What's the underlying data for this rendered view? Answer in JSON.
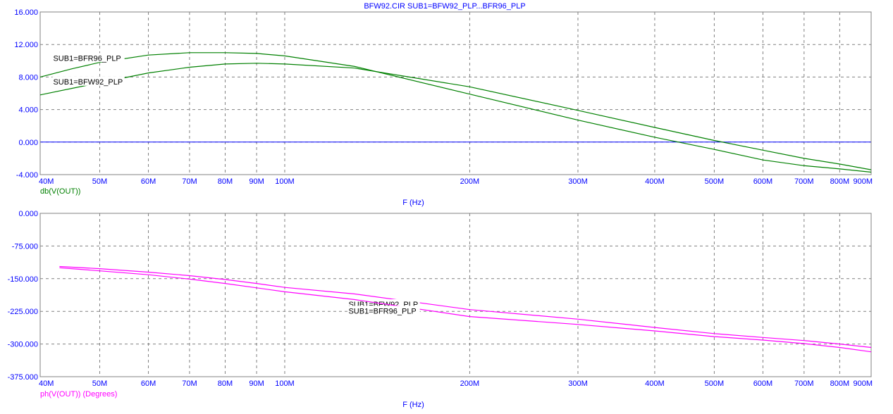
{
  "window_title": "BFW92.CIR SUB1=BFW92_PLP...BFR96_PLP",
  "colors": {
    "axis_text": "#0000ff",
    "grid": "#808080",
    "frame": "#808080",
    "magnitude": "#008000",
    "phase": "#ff00ff",
    "zero_line": "#0000ff"
  },
  "chart_data": [
    {
      "type": "line",
      "x_scale": "log",
      "xlabel": "F (Hz)",
      "ylabel": "db(V(OUT))",
      "xlim": [
        40000000,
        900000000
      ],
      "ylim": [
        -4,
        16
      ],
      "x_ticks": [
        {
          "v": 40000000,
          "label": "40M"
        },
        {
          "v": 50000000,
          "label": "50M"
        },
        {
          "v": 60000000,
          "label": "60M"
        },
        {
          "v": 70000000,
          "label": "70M"
        },
        {
          "v": 80000000,
          "label": "80M"
        },
        {
          "v": 90000000,
          "label": "90M"
        },
        {
          "v": 100000000,
          "label": "100M"
        },
        {
          "v": 200000000,
          "label": "200M"
        },
        {
          "v": 300000000,
          "label": "300M"
        },
        {
          "v": 400000000,
          "label": "400M"
        },
        {
          "v": 500000000,
          "label": "500M"
        },
        {
          "v": 600000000,
          "label": "600M"
        },
        {
          "v": 700000000,
          "label": "700M"
        },
        {
          "v": 800000000,
          "label": "800M"
        },
        {
          "v": 900000000,
          "label": "900M"
        }
      ],
      "y_ticks": [
        {
          "v": 16,
          "label": "16.000"
        },
        {
          "v": 12,
          "label": "12.000"
        },
        {
          "v": 8,
          "label": "8.000"
        },
        {
          "v": 4,
          "label": "4.000"
        },
        {
          "v": 0,
          "label": "0.000"
        },
        {
          "v": -4,
          "label": "-4.000"
        }
      ],
      "grid": true,
      "reference_line_y": 0,
      "series": [
        {
          "name": "SUB1=BFR96_PLP",
          "label_at": [
            42000000,
            10.0
          ],
          "x": [
            40000000,
            45000000,
            50000000,
            60000000,
            70000000,
            80000000,
            90000000,
            100000000,
            130000000,
            200000000,
            300000000,
            400000000,
            500000000,
            600000000,
            700000000,
            800000000,
            900000000
          ],
          "y": [
            8.0,
            9.0,
            9.8,
            10.7,
            11.0,
            11.0,
            10.9,
            10.6,
            9.3,
            5.9,
            2.7,
            0.6,
            -0.9,
            -2.2,
            -2.9,
            -3.3,
            -3.7
          ]
        },
        {
          "name": "SUB1=BFW92_PLP",
          "label_at": [
            42000000,
            7.1
          ],
          "x": [
            40000000,
            45000000,
            50000000,
            60000000,
            70000000,
            80000000,
            90000000,
            100000000,
            130000000,
            200000000,
            300000000,
            400000000,
            500000000,
            600000000,
            700000000,
            800000000,
            900000000
          ],
          "y": [
            5.8,
            6.6,
            7.3,
            8.5,
            9.2,
            9.6,
            9.7,
            9.6,
            9.1,
            6.8,
            3.9,
            1.8,
            0.2,
            -1.0,
            -2.0,
            -2.7,
            -3.4
          ]
        }
      ]
    },
    {
      "type": "line",
      "x_scale": "log",
      "xlabel": "F (Hz)",
      "ylabel": "ph(V(OUT)) (Degrees)",
      "xlim": [
        40000000,
        900000000
      ],
      "ylim": [
        -375,
        0
      ],
      "x_ticks": [
        {
          "v": 40000000,
          "label": "40M"
        },
        {
          "v": 50000000,
          "label": "50M"
        },
        {
          "v": 60000000,
          "label": "60M"
        },
        {
          "v": 70000000,
          "label": "70M"
        },
        {
          "v": 80000000,
          "label": "80M"
        },
        {
          "v": 90000000,
          "label": "90M"
        },
        {
          "v": 100000000,
          "label": "100M"
        },
        {
          "v": 200000000,
          "label": "200M"
        },
        {
          "v": 300000000,
          "label": "300M"
        },
        {
          "v": 400000000,
          "label": "400M"
        },
        {
          "v": 500000000,
          "label": "500M"
        },
        {
          "v": 600000000,
          "label": "600M"
        },
        {
          "v": 700000000,
          "label": "700M"
        },
        {
          "v": 800000000,
          "label": "800M"
        },
        {
          "v": 900000000,
          "label": "900M"
        }
      ],
      "y_ticks": [
        {
          "v": 0,
          "label": "0.000"
        },
        {
          "v": -75,
          "label": "-75.000"
        },
        {
          "v": -150,
          "label": "-150.000"
        },
        {
          "v": -225,
          "label": "-225.000"
        },
        {
          "v": -300,
          "label": "-300.000"
        },
        {
          "v": -375,
          "label": "-375.000"
        }
      ],
      "grid": true,
      "series": [
        {
          "name": "SUB1=BFW92_PLP",
          "label_at": [
            127000000,
            -215
          ],
          "x": [
            43000000,
            50000000,
            60000000,
            70000000,
            80000000,
            90000000,
            100000000,
            130000000,
            200000000,
            300000000,
            400000000,
            500000000,
            600000000,
            700000000,
            800000000,
            900000000
          ],
          "y": [
            -122,
            -127,
            -135,
            -143,
            -152,
            -161,
            -170,
            -185,
            -221,
            -243,
            -262,
            -276,
            -285,
            -292,
            -300,
            -308
          ]
        },
        {
          "name": "SUB1=BFR96_PLP",
          "label_at": [
            127000000,
            -230
          ],
          "x": [
            43000000,
            50000000,
            60000000,
            70000000,
            80000000,
            90000000,
            100000000,
            130000000,
            200000000,
            300000000,
            400000000,
            500000000,
            600000000,
            700000000,
            800000000,
            900000000
          ],
          "y": [
            -125,
            -132,
            -141,
            -151,
            -161,
            -171,
            -180,
            -198,
            -237,
            -255,
            -270,
            -283,
            -291,
            -299,
            -308,
            -318
          ]
        }
      ]
    }
  ]
}
